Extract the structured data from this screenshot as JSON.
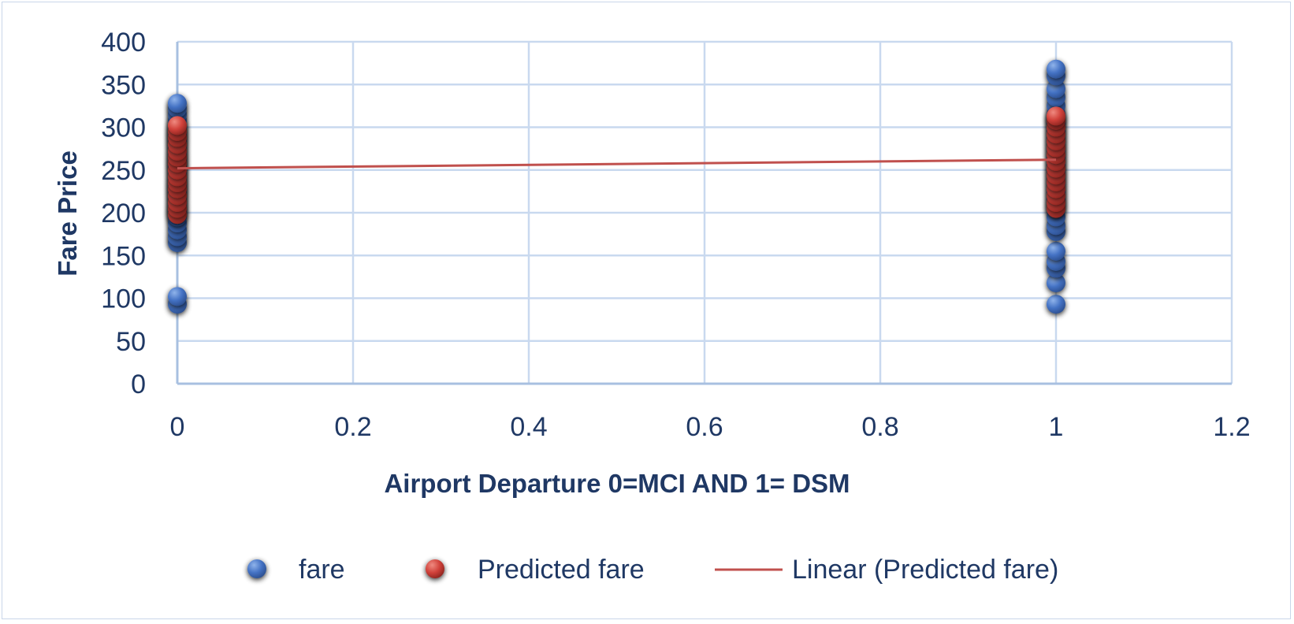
{
  "chart_data": {
    "type": "scatter",
    "xlabel": "Airport Departure 0=MCI AND 1= DSM",
    "ylabel": "Fare Price",
    "xlim": [
      0,
      1.2
    ],
    "ylim": [
      0,
      400
    ],
    "x_ticks": [
      "0",
      "0.2",
      "0.4",
      "0.6",
      "0.8",
      "1",
      "1.2"
    ],
    "y_ticks": [
      "0",
      "50",
      "100",
      "150",
      "200",
      "250",
      "300",
      "350",
      "400"
    ],
    "grid": true,
    "legend_position": "bottom",
    "series": [
      {
        "name": "fare",
        "kind": "scatter",
        "color": "#4472c4",
        "points": [
          [
            0,
            93
          ],
          [
            0,
            102
          ],
          [
            0,
            165
          ],
          [
            0,
            172
          ],
          [
            0,
            180
          ],
          [
            0,
            188
          ],
          [
            0,
            195
          ],
          [
            0,
            202
          ],
          [
            0,
            210
          ],
          [
            0,
            218
          ],
          [
            0,
            225
          ],
          [
            0,
            232
          ],
          [
            0,
            240
          ],
          [
            0,
            248
          ],
          [
            0,
            255
          ],
          [
            0,
            262
          ],
          [
            0,
            270
          ],
          [
            0,
            278
          ],
          [
            0,
            285
          ],
          [
            0,
            292
          ],
          [
            0,
            300
          ],
          [
            0,
            308
          ],
          [
            0,
            315
          ],
          [
            0,
            322
          ],
          [
            0,
            328
          ],
          [
            1,
            93
          ],
          [
            1,
            118
          ],
          [
            1,
            135
          ],
          [
            1,
            143
          ],
          [
            1,
            155
          ],
          [
            1,
            178
          ],
          [
            1,
            185
          ],
          [
            1,
            195
          ],
          [
            1,
            205
          ],
          [
            1,
            215
          ],
          [
            1,
            225
          ],
          [
            1,
            235
          ],
          [
            1,
            245
          ],
          [
            1,
            255
          ],
          [
            1,
            265
          ],
          [
            1,
            275
          ],
          [
            1,
            285
          ],
          [
            1,
            295
          ],
          [
            1,
            305
          ],
          [
            1,
            315
          ],
          [
            1,
            325
          ],
          [
            1,
            335
          ],
          [
            1,
            345
          ],
          [
            1,
            360
          ],
          [
            1,
            368
          ]
        ]
      },
      {
        "name": "Predicted fare",
        "kind": "scatter",
        "color": "#c0392b",
        "points": [
          [
            0,
            198
          ],
          [
            0,
            205
          ],
          [
            0,
            212
          ],
          [
            0,
            220
          ],
          [
            0,
            228
          ],
          [
            0,
            235
          ],
          [
            0,
            242
          ],
          [
            0,
            250
          ],
          [
            0,
            258
          ],
          [
            0,
            265
          ],
          [
            0,
            272
          ],
          [
            0,
            280
          ],
          [
            0,
            288
          ],
          [
            0,
            295
          ],
          [
            0,
            302
          ],
          [
            1,
            205
          ],
          [
            1,
            212
          ],
          [
            1,
            220
          ],
          [
            1,
            228
          ],
          [
            1,
            236
          ],
          [
            1,
            244
          ],
          [
            1,
            252
          ],
          [
            1,
            260
          ],
          [
            1,
            268
          ],
          [
            1,
            276
          ],
          [
            1,
            284
          ],
          [
            1,
            292
          ],
          [
            1,
            300
          ],
          [
            1,
            308
          ],
          [
            1,
            313
          ]
        ]
      },
      {
        "name": "Linear (Predicted fare)",
        "kind": "line",
        "color": "#c0504d",
        "points": [
          [
            0,
            252
          ],
          [
            1,
            262
          ]
        ]
      }
    ]
  }
}
